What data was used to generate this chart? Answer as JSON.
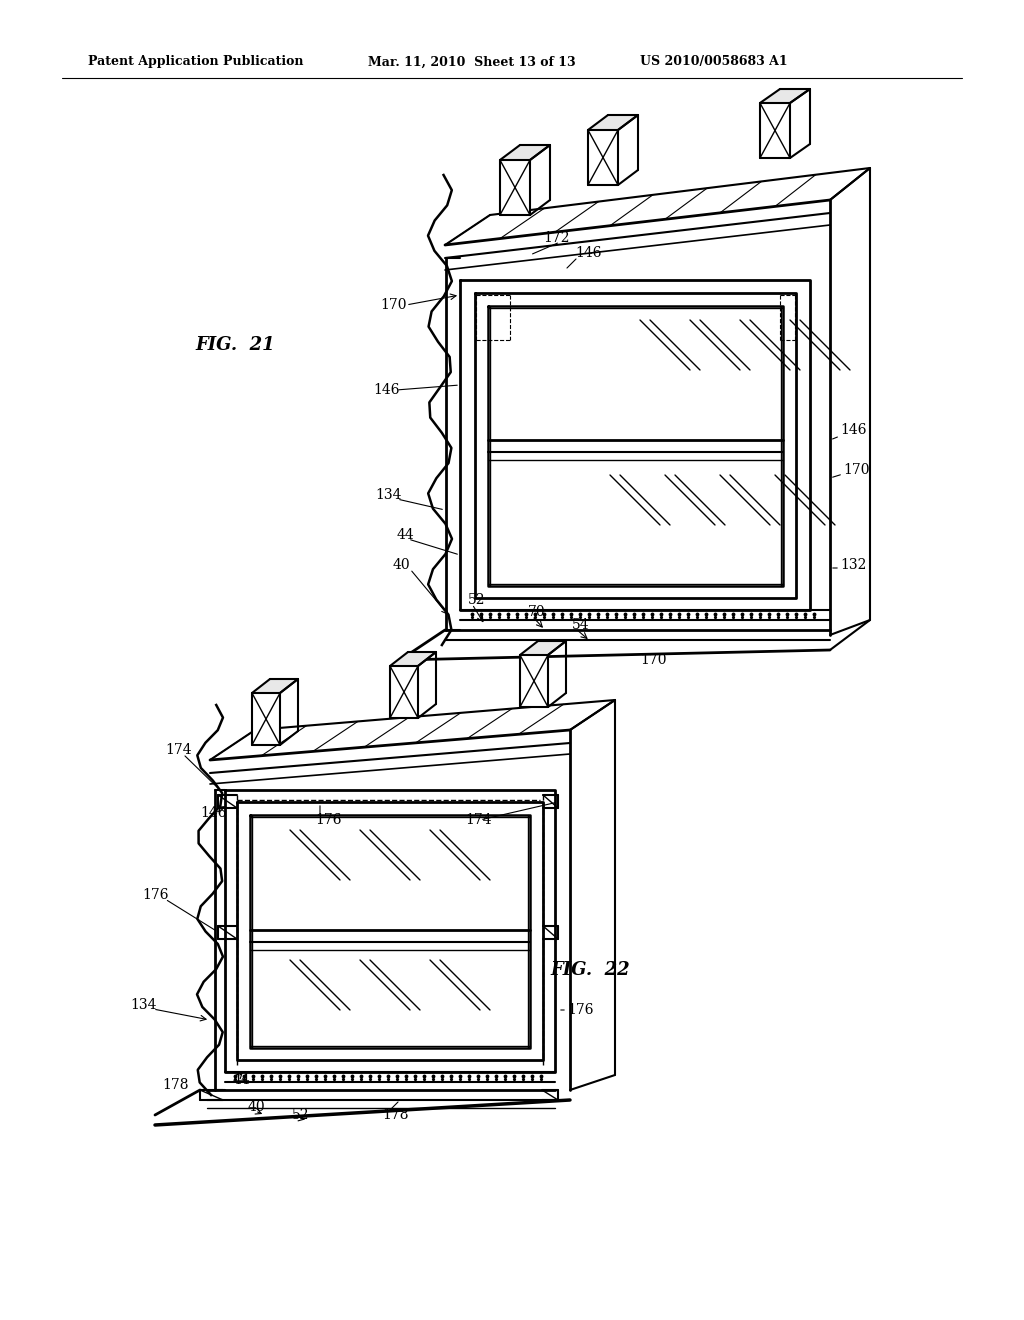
{
  "title_left": "Patent Application Publication",
  "title_mid": "Mar. 11, 2010  Sheet 13 of 13",
  "title_right": "US 2010/0058683 A1",
  "fig21_label": "FIG.  21",
  "fig22_label": "FIG.  22",
  "bg_color": "#ffffff",
  "line_color": "#000000",
  "header_fontsize": 9,
  "fig_label_fontsize": 13
}
